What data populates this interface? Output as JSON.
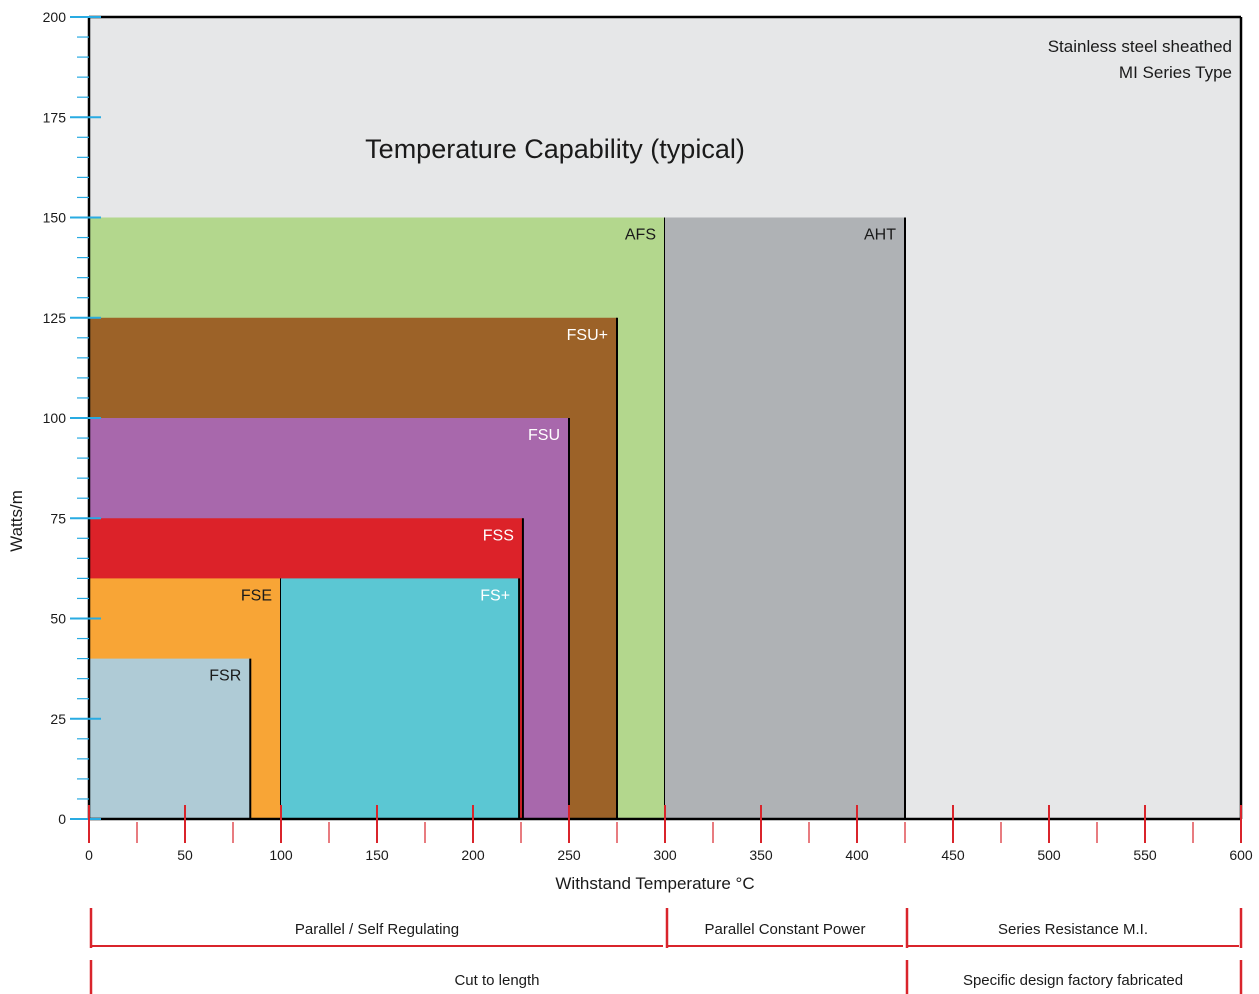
{
  "chart_data": {
    "type": "bar",
    "title": "Temperature Capability (typical)",
    "xlabel": "Withstand Temperature °C",
    "ylabel": "Watts/m",
    "xlim": [
      0,
      600
    ],
    "ylim": [
      0,
      200
    ],
    "xticks": [
      0,
      50,
      100,
      150,
      200,
      250,
      300,
      350,
      400,
      450,
      500,
      550,
      600
    ],
    "yticks": [
      0,
      25,
      50,
      75,
      100,
      125,
      150,
      175,
      200
    ],
    "background_label": [
      "Stainless steel sheathed",
      "MI Series Type"
    ],
    "series": [
      {
        "name": "AFS",
        "x0": 0,
        "x1": 300,
        "value": 150,
        "color": "#b3d78d",
        "label_color": "#1a1a1a"
      },
      {
        "name": "AHT",
        "x0": 300,
        "x1": 425,
        "value": 150,
        "color": "#afb2b5",
        "label_color": "#1a1a1a"
      },
      {
        "name": "FSU+",
        "x0": 0,
        "x1": 275,
        "value": 125,
        "color": "#9c6228",
        "label_color": "#ffffff"
      },
      {
        "name": "FSU",
        "x0": 0,
        "x1": 250,
        "value": 100,
        "color": "#a868ac",
        "label_color": "#ffffff"
      },
      {
        "name": "FSS",
        "x0": 0,
        "x1": 226,
        "value": 75,
        "color": "#dc2229",
        "label_color": "#ffffff"
      },
      {
        "name": "FSE",
        "x0": 0,
        "x1": 100,
        "value": 60,
        "color": "#f8a536",
        "label_color": "#1a1a1a"
      },
      {
        "name": "FS+",
        "x0": 100,
        "x1": 224,
        "value": 60,
        "color": "#5bc7d3",
        "label_color": "#ffffff"
      },
      {
        "name": "FSR",
        "x0": 0,
        "x1": 84,
        "value": 40,
        "color": "#afcbd6",
        "label_color": "#1a1a1a"
      }
    ],
    "colors": {
      "background": "#e6e7e8",
      "axis": "#000000",
      "y_tick": "#29abe2",
      "x_tick": "#d9242b",
      "range_line": "#d9242b"
    }
  },
  "ranges": {
    "row1": [
      {
        "label": "Parallel / Self Regulating",
        "x0": 0,
        "x1": 300
      },
      {
        "label": "Parallel Constant Power",
        "x0": 300,
        "x1": 425
      },
      {
        "label": "Series Resistance M.I.",
        "x0": 425,
        "x1": 600
      }
    ],
    "row2": [
      {
        "label": "Cut to length",
        "x0": 0,
        "x1": 425
      },
      {
        "label": "Specific design factory fabricated",
        "x0": 425,
        "x1": 600
      }
    ]
  }
}
